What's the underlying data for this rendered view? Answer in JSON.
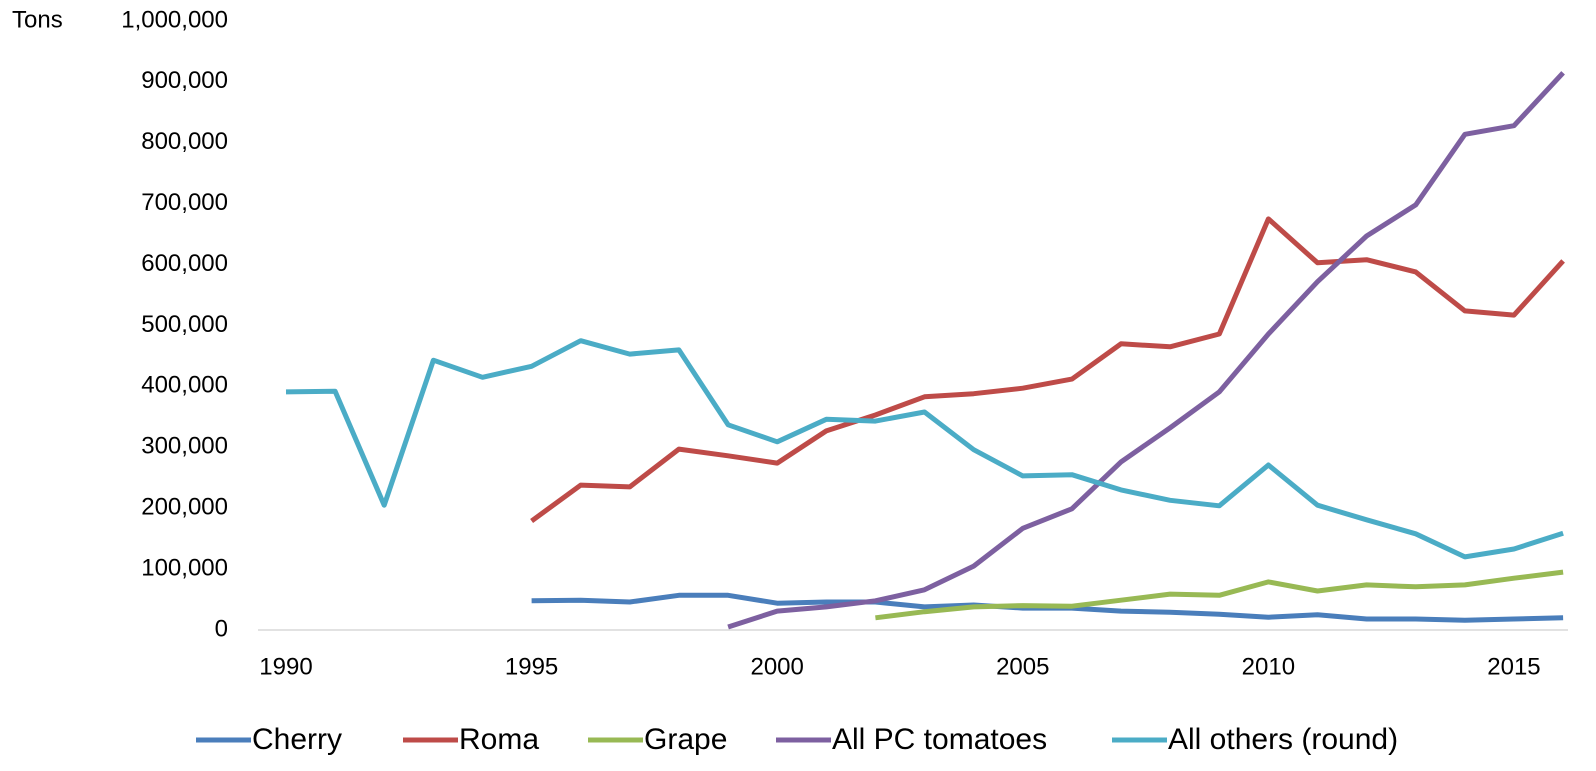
{
  "chart_data": {
    "type": "line",
    "y_axis_label": "Tons",
    "x": [
      1990,
      1991,
      1992,
      1993,
      1994,
      1995,
      1996,
      1997,
      1998,
      1999,
      2000,
      2001,
      2002,
      2003,
      2004,
      2005,
      2006,
      2007,
      2008,
      2009,
      2010,
      2011,
      2012,
      2013,
      2014,
      2015,
      2016
    ],
    "series": [
      {
        "name": "Cherry",
        "color": "#4a7ebb",
        "values": [
          null,
          null,
          null,
          null,
          null,
          48000,
          49000,
          46000,
          57000,
          57000,
          44000,
          46000,
          46000,
          38000,
          41000,
          36000,
          36000,
          31000,
          29000,
          26000,
          21000,
          25000,
          18000,
          18000,
          16000,
          18000,
          20000
        ]
      },
      {
        "name": "Roma",
        "color": "#be4b48",
        "values": [
          null,
          null,
          null,
          null,
          null,
          179000,
          238000,
          235000,
          297000,
          286000,
          274000,
          327000,
          353000,
          383000,
          388000,
          397000,
          412000,
          470000,
          465000,
          486000,
          675000,
          603000,
          608000,
          588000,
          524000,
          517000,
          606000
        ]
      },
      {
        "name": "Grape",
        "color": "#98b954",
        "values": [
          null,
          null,
          null,
          null,
          null,
          null,
          null,
          null,
          null,
          null,
          null,
          null,
          20000,
          30000,
          38000,
          40000,
          39000,
          49000,
          59000,
          57000,
          79000,
          64000,
          74000,
          71000,
          74000,
          85000,
          95000
        ]
      },
      {
        "name": "All PC tomatoes",
        "color": "#7d60a0",
        "values": [
          null,
          null,
          null,
          null,
          null,
          null,
          null,
          null,
          null,
          5000,
          31000,
          38000,
          48000,
          66000,
          105000,
          167000,
          199000,
          276000,
          332000,
          391000,
          486000,
          572000,
          647000,
          698000,
          814000,
          828000,
          915000
        ]
      },
      {
        "name": "All others (round)",
        "color": "#4bacc6",
        "values": [
          391000,
          392000,
          205000,
          443000,
          415000,
          433000,
          475000,
          453000,
          460000,
          337000,
          309000,
          346000,
          343000,
          358000,
          296000,
          253000,
          255000,
          230000,
          213000,
          204000,
          271000,
          205000,
          181000,
          158000,
          120000,
          133000,
          159000
        ]
      }
    ],
    "xlim": [
      1989.43,
      2016.1
    ],
    "ylim": [
      0,
      1000000
    ],
    "xticks": [
      1990,
      1995,
      2000,
      2005,
      2010,
      2015
    ],
    "yticks": [
      0,
      {
        "value": 100000,
        "label": "100,000"
      },
      {
        "value": 200000,
        "label": "200,000"
      },
      {
        "value": 300000,
        "label": "300,000"
      },
      {
        "value": 400000,
        "label": "400,000"
      },
      {
        "value": 500000,
        "label": "500,000"
      },
      {
        "value": 600000,
        "label": "600,000"
      },
      {
        "value": 700000,
        "label": "700,000"
      },
      {
        "value": 800000,
        "label": "800,000"
      },
      {
        "value": 900000,
        "label": "900,000"
      },
      {
        "value": 1000000,
        "label": "1,000,000"
      }
    ],
    "legend": "bottom"
  }
}
